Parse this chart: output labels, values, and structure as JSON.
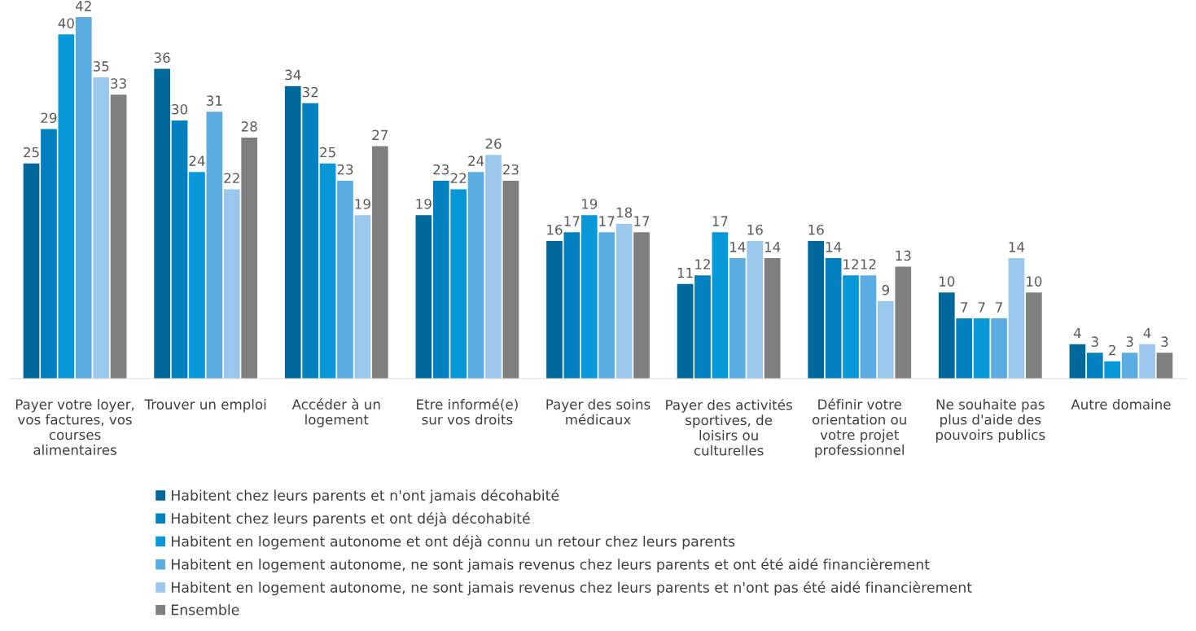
{
  "chart_data": {
    "type": "bar",
    "categories": [
      "Payer votre loyer,\nvos factures, vos\ncourses\nalimentaires",
      "Trouver un emploi",
      "Accéder à un\nlogement",
      "Etre informé(e)\nsur vos droits",
      "Payer des soins\nmédicaux",
      "Payer des activités\nsportives, de\nloisirs ou\nculturelles",
      "Définir votre\norientation ou\nvotre projet\nprofessionnel",
      "Ne souhaite pas\nplus d'aide des\npouvoirs publics",
      "Autre domaine"
    ],
    "series": [
      {
        "name": "Habitent chez leurs parents et n'ont jamais décohabité",
        "color": "#00689b",
        "values": [
          25,
          36,
          34,
          19,
          16,
          11,
          16,
          10,
          4
        ]
      },
      {
        "name": "Habitent chez leurs parents et ont déjà décohabité",
        "color": "#0280bf",
        "values": [
          29,
          30,
          32,
          23,
          17,
          12,
          14,
          7,
          3
        ]
      },
      {
        "name": "Habitent en logement autonome et ont déjà connu un retour chez leurs parents",
        "color": "#0898d8",
        "values": [
          40,
          24,
          25,
          22,
          19,
          17,
          12,
          7,
          2
        ]
      },
      {
        "name": "Habitent en logement autonome, ne sont jamais revenus chez leurs parents et ont été aidé financièrement",
        "color": "#5aace2",
        "values": [
          42,
          31,
          23,
          24,
          17,
          14,
          12,
          7,
          3
        ]
      },
      {
        "name": "Habitent en logement autonome, ne sont jamais revenus chez leurs parents et n'ont pas été aidé financièrement",
        "color": "#9cc7ec",
        "values": [
          35,
          22,
          19,
          26,
          18,
          16,
          9,
          14,
          4
        ]
      },
      {
        "name": "Ensemble",
        "color": "#7f7f7f",
        "values": [
          33,
          28,
          27,
          23,
          17,
          14,
          13,
          10,
          3
        ]
      }
    ],
    "data_labels": true,
    "legend": "bottom",
    "grid": false,
    "tick_labels": "x"
  }
}
